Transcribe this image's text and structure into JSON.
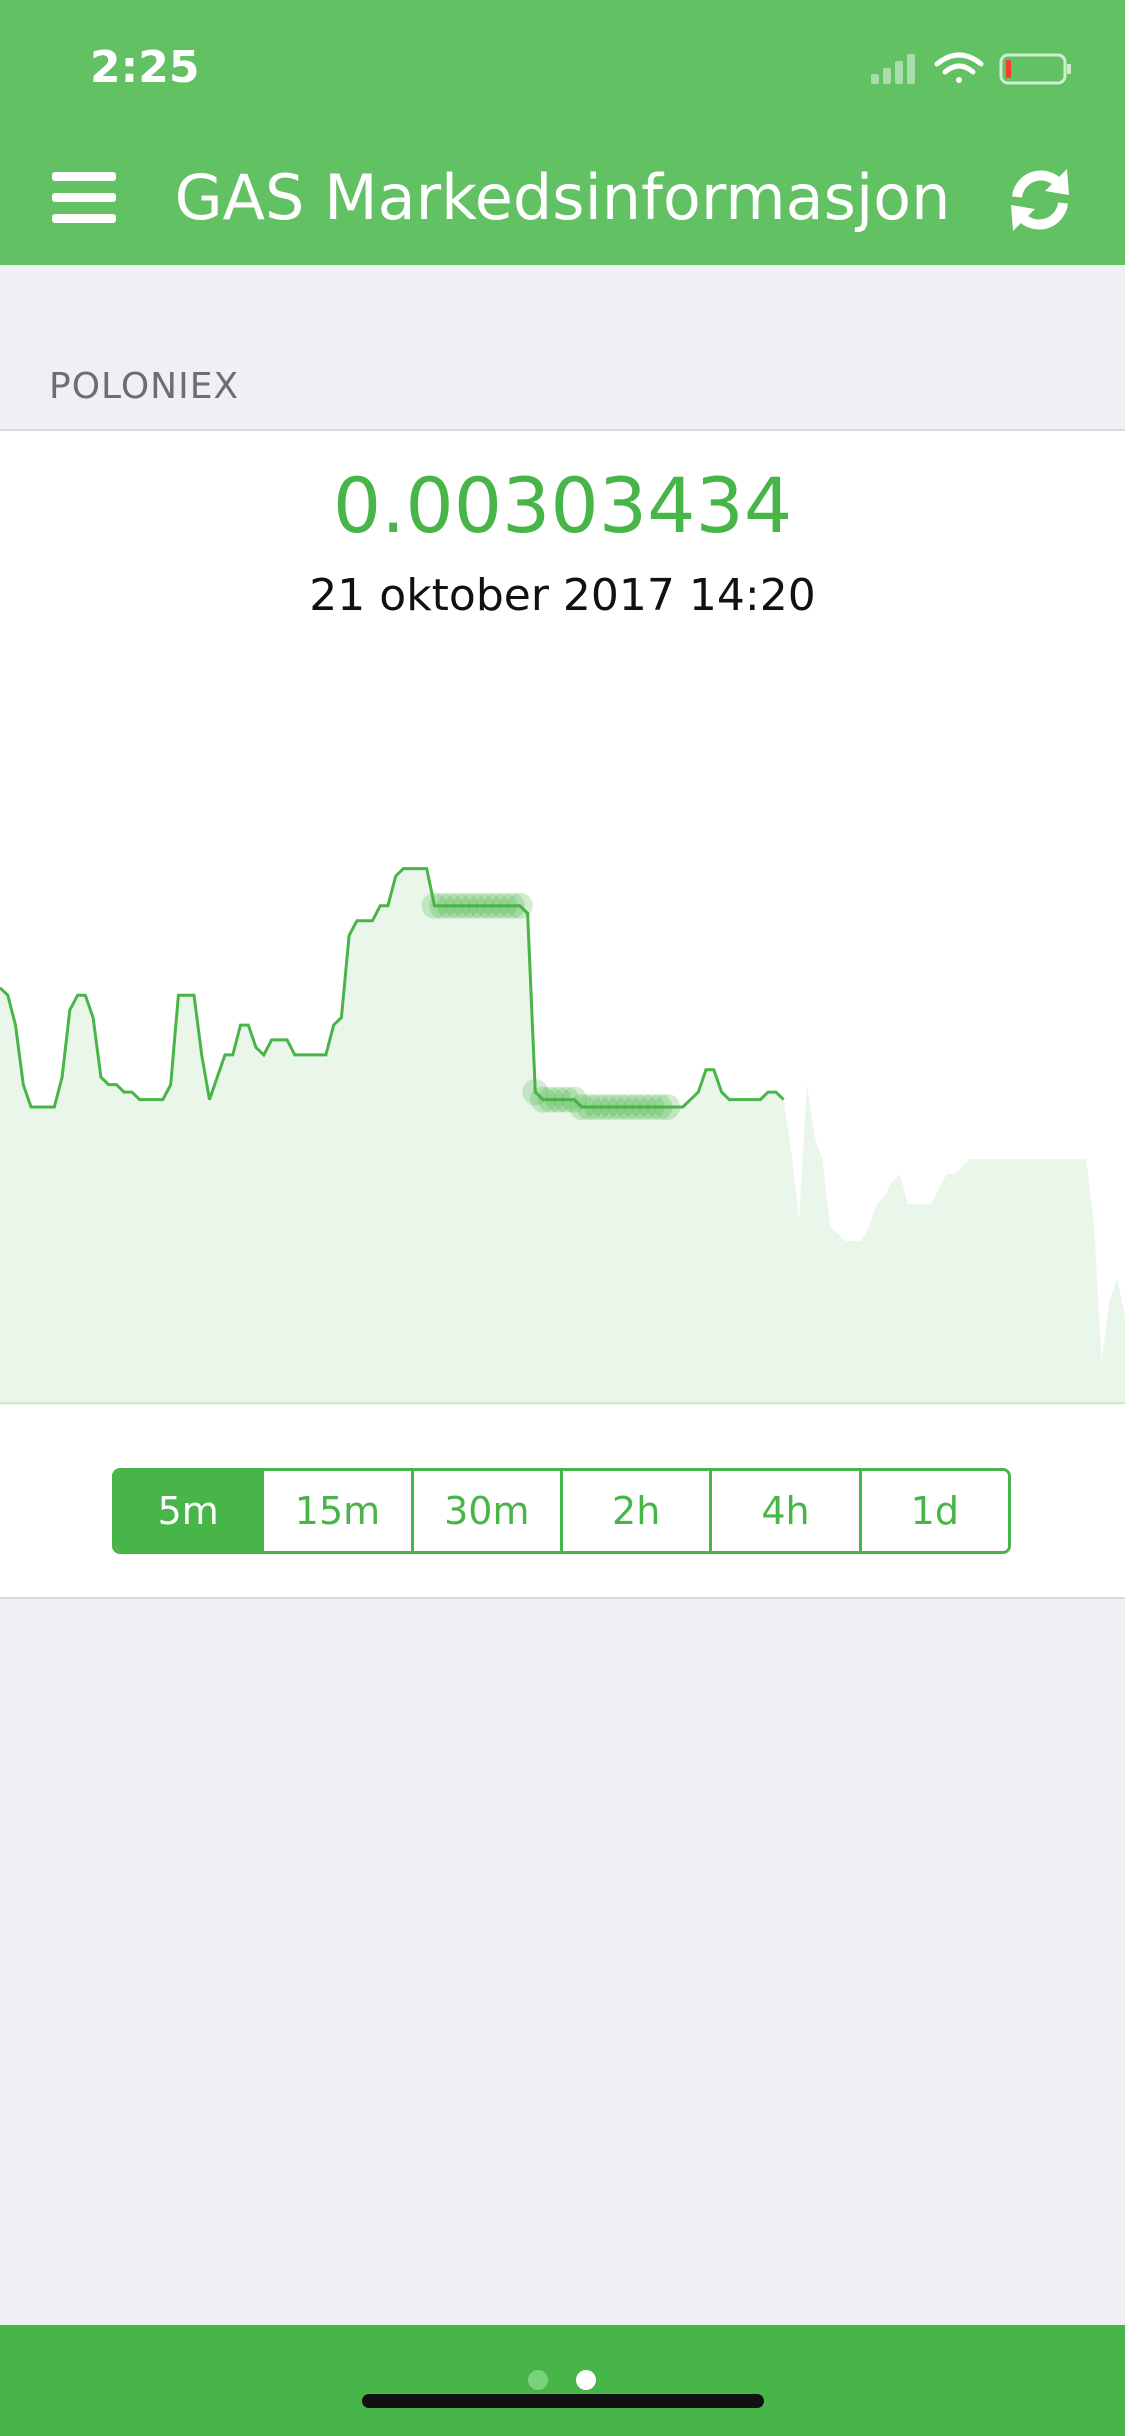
{
  "status_bar": {
    "time": "2:25"
  },
  "header": {
    "title": "GAS Markedsinformasjon",
    "menu_icon": "hamburger-menu-icon",
    "refresh_icon": "refresh-icon",
    "color": "#62c162"
  },
  "section": {
    "label": "POLONIEX"
  },
  "ticker": {
    "price": "0.00303434",
    "date": "21 oktober 2017 14:20"
  },
  "colors": {
    "accent": "#48b548",
    "fill": "#eaf6ea"
  },
  "chart_data": {
    "type": "area",
    "title": "",
    "xlabel": "",
    "ylabel": "",
    "grid": false,
    "legend": "none",
    "ylim": [
      0,
      1
    ],
    "values": [
      0.56,
      0.55,
      0.51,
      0.43,
      0.4,
      0.4,
      0.4,
      0.4,
      0.44,
      0.53,
      0.55,
      0.55,
      0.52,
      0.44,
      0.43,
      0.43,
      0.42,
      0.42,
      0.41,
      0.41,
      0.41,
      0.41,
      0.43,
      0.55,
      0.55,
      0.55,
      0.47,
      0.41,
      0.44,
      0.47,
      0.47,
      0.51,
      0.51,
      0.48,
      0.47,
      0.49,
      0.49,
      0.49,
      0.47,
      0.47,
      0.47,
      0.47,
      0.47,
      0.51,
      0.52,
      0.63,
      0.65,
      0.65,
      0.65,
      0.67,
      0.67,
      0.71,
      0.72,
      0.72,
      0.72,
      0.72,
      0.67,
      0.67,
      0.67,
      0.67,
      0.67,
      0.67,
      0.67,
      0.67,
      0.67,
      0.67,
      0.67,
      0.67,
      0.66,
      0.42,
      0.41,
      0.41,
      0.41,
      0.41,
      0.41,
      0.4,
      0.4,
      0.4,
      0.4,
      0.4,
      0.4,
      0.4,
      0.4,
      0.4,
      0.4,
      0.4,
      0.4,
      0.4,
      0.4,
      0.41,
      0.42,
      0.45,
      0.45,
      0.42,
      0.41,
      0.41,
      0.41,
      0.41,
      0.41,
      0.42,
      0.42,
      0.41,
      0.34,
      0.25,
      0.43,
      0.36,
      0.33,
      0.24,
      0.23,
      0.22,
      0.22,
      0.22,
      0.24,
      0.27,
      0.28,
      0.3,
      0.31,
      0.27,
      0.27,
      0.27,
      0.27,
      0.29,
      0.31,
      0.31,
      0.32,
      0.33,
      0.33,
      0.33,
      0.33,
      0.33,
      0.33,
      0.33,
      0.33,
      0.33,
      0.33,
      0.33,
      0.33,
      0.33,
      0.33,
      0.33,
      0.33,
      0.24,
      0.06,
      0.14,
      0.17,
      0.12
    ],
    "selected_end_index": 101
  },
  "timeframes": {
    "options": [
      "5m",
      "15m",
      "30m",
      "2h",
      "4h",
      "1d"
    ],
    "selected": "5m"
  }
}
